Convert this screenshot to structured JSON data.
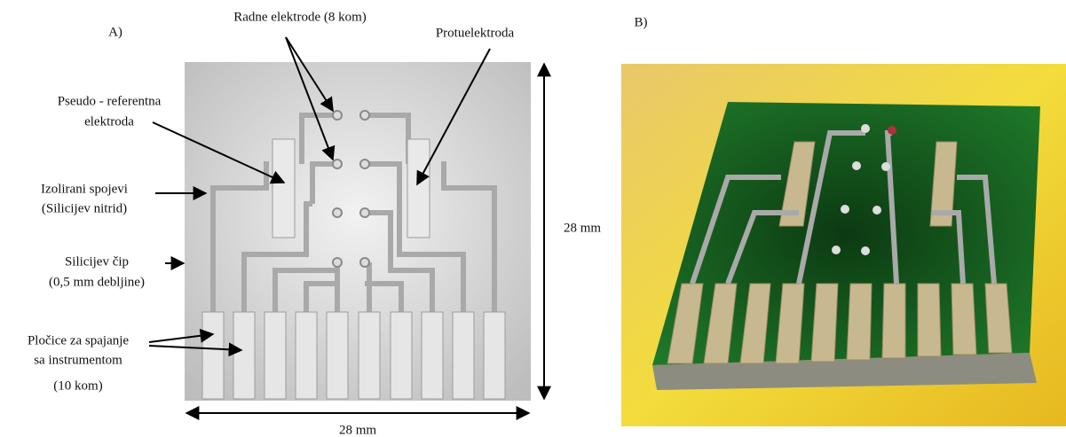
{
  "panel_a": {
    "label": "A)"
  },
  "panel_b": {
    "label": "B)"
  },
  "annotations": {
    "working_electrodes": "Radne elektrode (8 kom)",
    "counter_electrode": "Protuelektroda",
    "pseudo_reference": {
      "lines": [
        "Pseudo - referentna",
        "elektroda"
      ]
    },
    "insulated_connections": {
      "lines": [
        "Izolirani spojevi",
        "(Silicijev nitrid)"
      ]
    },
    "silicon_chip": {
      "lines": [
        "Silicijev čip",
        "(0,5 mm debljine)"
      ]
    },
    "contact_pads": {
      "lines": [
        "Pločice za spajanje",
        "sa instrumentom",
        "(10 kom)"
      ]
    }
  },
  "dimensions": {
    "height": "28 mm",
    "width": "28 mm"
  }
}
